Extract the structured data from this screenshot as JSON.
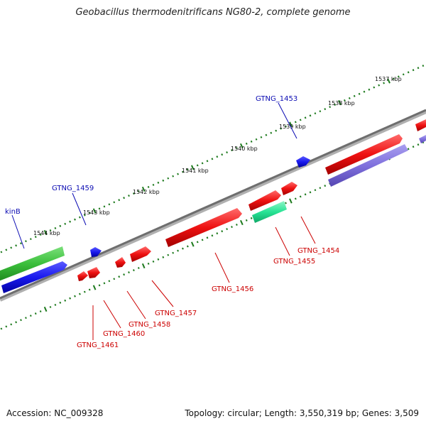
{
  "title": "Geobacillus thermodenitrificans NG80-2, complete genome",
  "footer": {
    "accession": "Accession: NC_009328",
    "summary": "Topology: circular; Length: 3,550,319 bp; Genes: 3,509"
  },
  "colors": {
    "backbone": "#7a7a7a",
    "tick_outer": "#1d7a1d",
    "tick_inner": "#1d7a1d",
    "forward_cds": "#e81818",
    "other_cds": "#1a1aee",
    "rna": "#27e394",
    "green_feature": "#3bbf3b",
    "lavender_feature": "#7f70dd",
    "label_blue": "#0b0bb3",
    "label_red": "#cc0000"
  },
  "ruler_labels": [
    "1537 kbp",
    "1538 kbp",
    "1539 kbp",
    "1540 kbp",
    "1541 kbp",
    "1542 kbp",
    "1543 kbp",
    "1544 kbp"
  ],
  "gene_labels": [
    {
      "text": "GTNG_1453",
      "color": "blue"
    },
    {
      "text": "GTNG_1459",
      "color": "blue"
    },
    {
      "text": "kinB",
      "color": "blue"
    },
    {
      "text": "GTNG_1454",
      "color": "red"
    },
    {
      "text": "GTNG_1455",
      "color": "red"
    },
    {
      "text": "GTNG_1456",
      "color": "red"
    },
    {
      "text": "GTNG_1457",
      "color": "red"
    },
    {
      "text": "GTNG_1458",
      "color": "red"
    },
    {
      "text": "GTNG_1460",
      "color": "red"
    },
    {
      "text": "GTNG_1461",
      "color": "red"
    }
  ]
}
